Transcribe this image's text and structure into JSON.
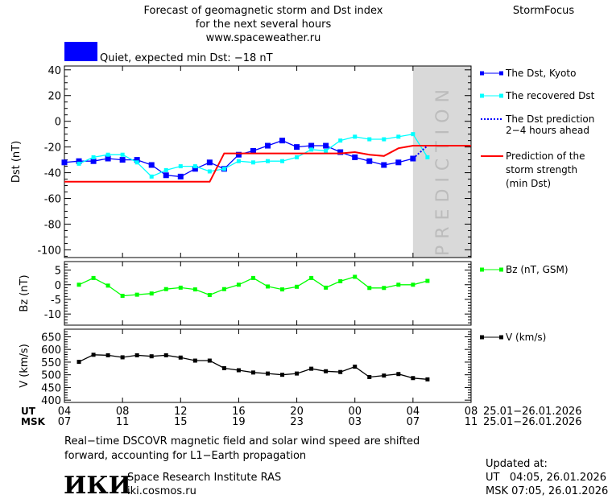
{
  "header": {
    "title_lines": [
      "Forecast of geomagnetic storm and Dst index",
      "for the next several hours",
      "www.spaceweather.ru"
    ],
    "brand": "StormFocus",
    "status_color": "#0000ff",
    "status_text": "Quiet, expected min Dst: −18 nT"
  },
  "prediction_label": "PREDICTION",
  "time_axis": {
    "ut_label": "UT",
    "msk_label": "MSK",
    "ut_ticks": [
      "04",
      "08",
      "12",
      "16",
      "20",
      "00",
      "04",
      "08"
    ],
    "msk_ticks": [
      "07",
      "11",
      "15",
      "19",
      "23",
      "03",
      "07",
      "11"
    ],
    "ut_date": "25.01−26.01.2026",
    "msk_date": "25.01−26.01.2026"
  },
  "footer": {
    "note_lines": [
      "Real−time DSCOVR magnetic field and solar wind speed are shifted",
      "forward, accounting for L1−Earth propagation"
    ],
    "logo_text": "ИКИ",
    "institute": "Space Research Institute RAS",
    "site": "iki.cosmos.ru",
    "updated_label": "Updated at:",
    "updated_ut": "UT   04:05, 26.01.2026",
    "updated_msk": "MSK 07:05, 26.01.2026"
  },
  "chart_data": [
    {
      "type": "line",
      "ylabel": "Dst (nT)",
      "ylim": [
        -106,
        43
      ],
      "yticks": [
        40,
        20,
        0,
        -20,
        -40,
        -60,
        -80,
        -100
      ],
      "x_unit": "hours since 04 UT 25.01.2026",
      "xlim": [
        0,
        28
      ],
      "prediction_region": [
        24,
        28
      ],
      "series": [
        {
          "name": "The Dst, Kyoto",
          "color": "#0000ff",
          "x_start": 0,
          "values": [
            -32,
            -31,
            -31,
            -29,
            -30,
            -30,
            -34,
            -42,
            -43,
            -37,
            -32,
            -37,
            -26,
            -23,
            -19,
            -15,
            -20,
            -19,
            -19,
            -24,
            -28,
            -31,
            -34,
            -32,
            -29
          ]
        },
        {
          "name": "The recovered Dst",
          "color": "#00ffff",
          "x_start": 1,
          "values": [
            -33,
            -28,
            -26,
            -26,
            -32,
            -43,
            -38,
            -35,
            -35,
            -39,
            -37,
            -31,
            -32,
            -31,
            -31,
            -28,
            -22,
            -23,
            -15,
            -12,
            -14,
            -14,
            -12,
            -10,
            -28
          ]
        },
        {
          "name": "The Dst prediction 2−4 hours ahead",
          "color": "#0000ff",
          "style": "dotted",
          "points": [
            [
              24,
              -29
            ],
            [
              24.5,
              -24
            ],
            [
              25,
              -19
            ],
            [
              27.2,
              -19
            ]
          ]
        },
        {
          "name": "Prediction of the storm strength (min Dst)",
          "color": "#ff0000",
          "points": [
            [
              0,
              -47
            ],
            [
              10,
              -47
            ],
            [
              11,
              -25
            ],
            [
              19,
              -25
            ],
            [
              20,
              -24
            ],
            [
              21,
              -26
            ],
            [
              22,
              -27
            ],
            [
              23,
              -21
            ],
            [
              24,
              -19
            ],
            [
              28,
              -19
            ]
          ]
        }
      ],
      "legend": [
        "The Dst, Kyoto",
        "The recovered Dst",
        "The Dst prediction",
        "2−4 hours ahead",
        "Prediction of the",
        "storm strength",
        "(min Dst)"
      ]
    },
    {
      "type": "line",
      "ylabel": "Bz (nT)",
      "ylim": [
        -13.8,
        7.9
      ],
      "yticks": [
        5,
        0,
        -5,
        -10
      ],
      "xlim": [
        0,
        28
      ],
      "series": [
        {
          "name": "Bz (nT, GSM)",
          "color": "#00ff00",
          "x_start": 1,
          "values": [
            0,
            2.3,
            -0.3,
            -3.8,
            -3.4,
            -3,
            -1.5,
            -1,
            -1.6,
            -3.5,
            -1.5,
            0,
            2.3,
            -0.6,
            -1.6,
            -0.7,
            2.3,
            -1,
            1.2,
            2.7,
            -1.1,
            -1.1,
            0,
            0,
            1.3
          ]
        }
      ]
    },
    {
      "type": "line",
      "ylabel": "V (km/s)",
      "ylim": [
        391,
        680
      ],
      "yticks": [
        650,
        600,
        550,
        500,
        450,
        400
      ],
      "xlim": [
        0,
        28
      ],
      "series": [
        {
          "name": "V (km/s)",
          "color": "#000000",
          "x_start": 1,
          "values": [
            551,
            579,
            577,
            569,
            577,
            573,
            577,
            568,
            556,
            556,
            526,
            518,
            509,
            505,
            500,
            505,
            524,
            514,
            511,
            532,
            491,
            497,
            503,
            487,
            482
          ]
        }
      ]
    }
  ]
}
